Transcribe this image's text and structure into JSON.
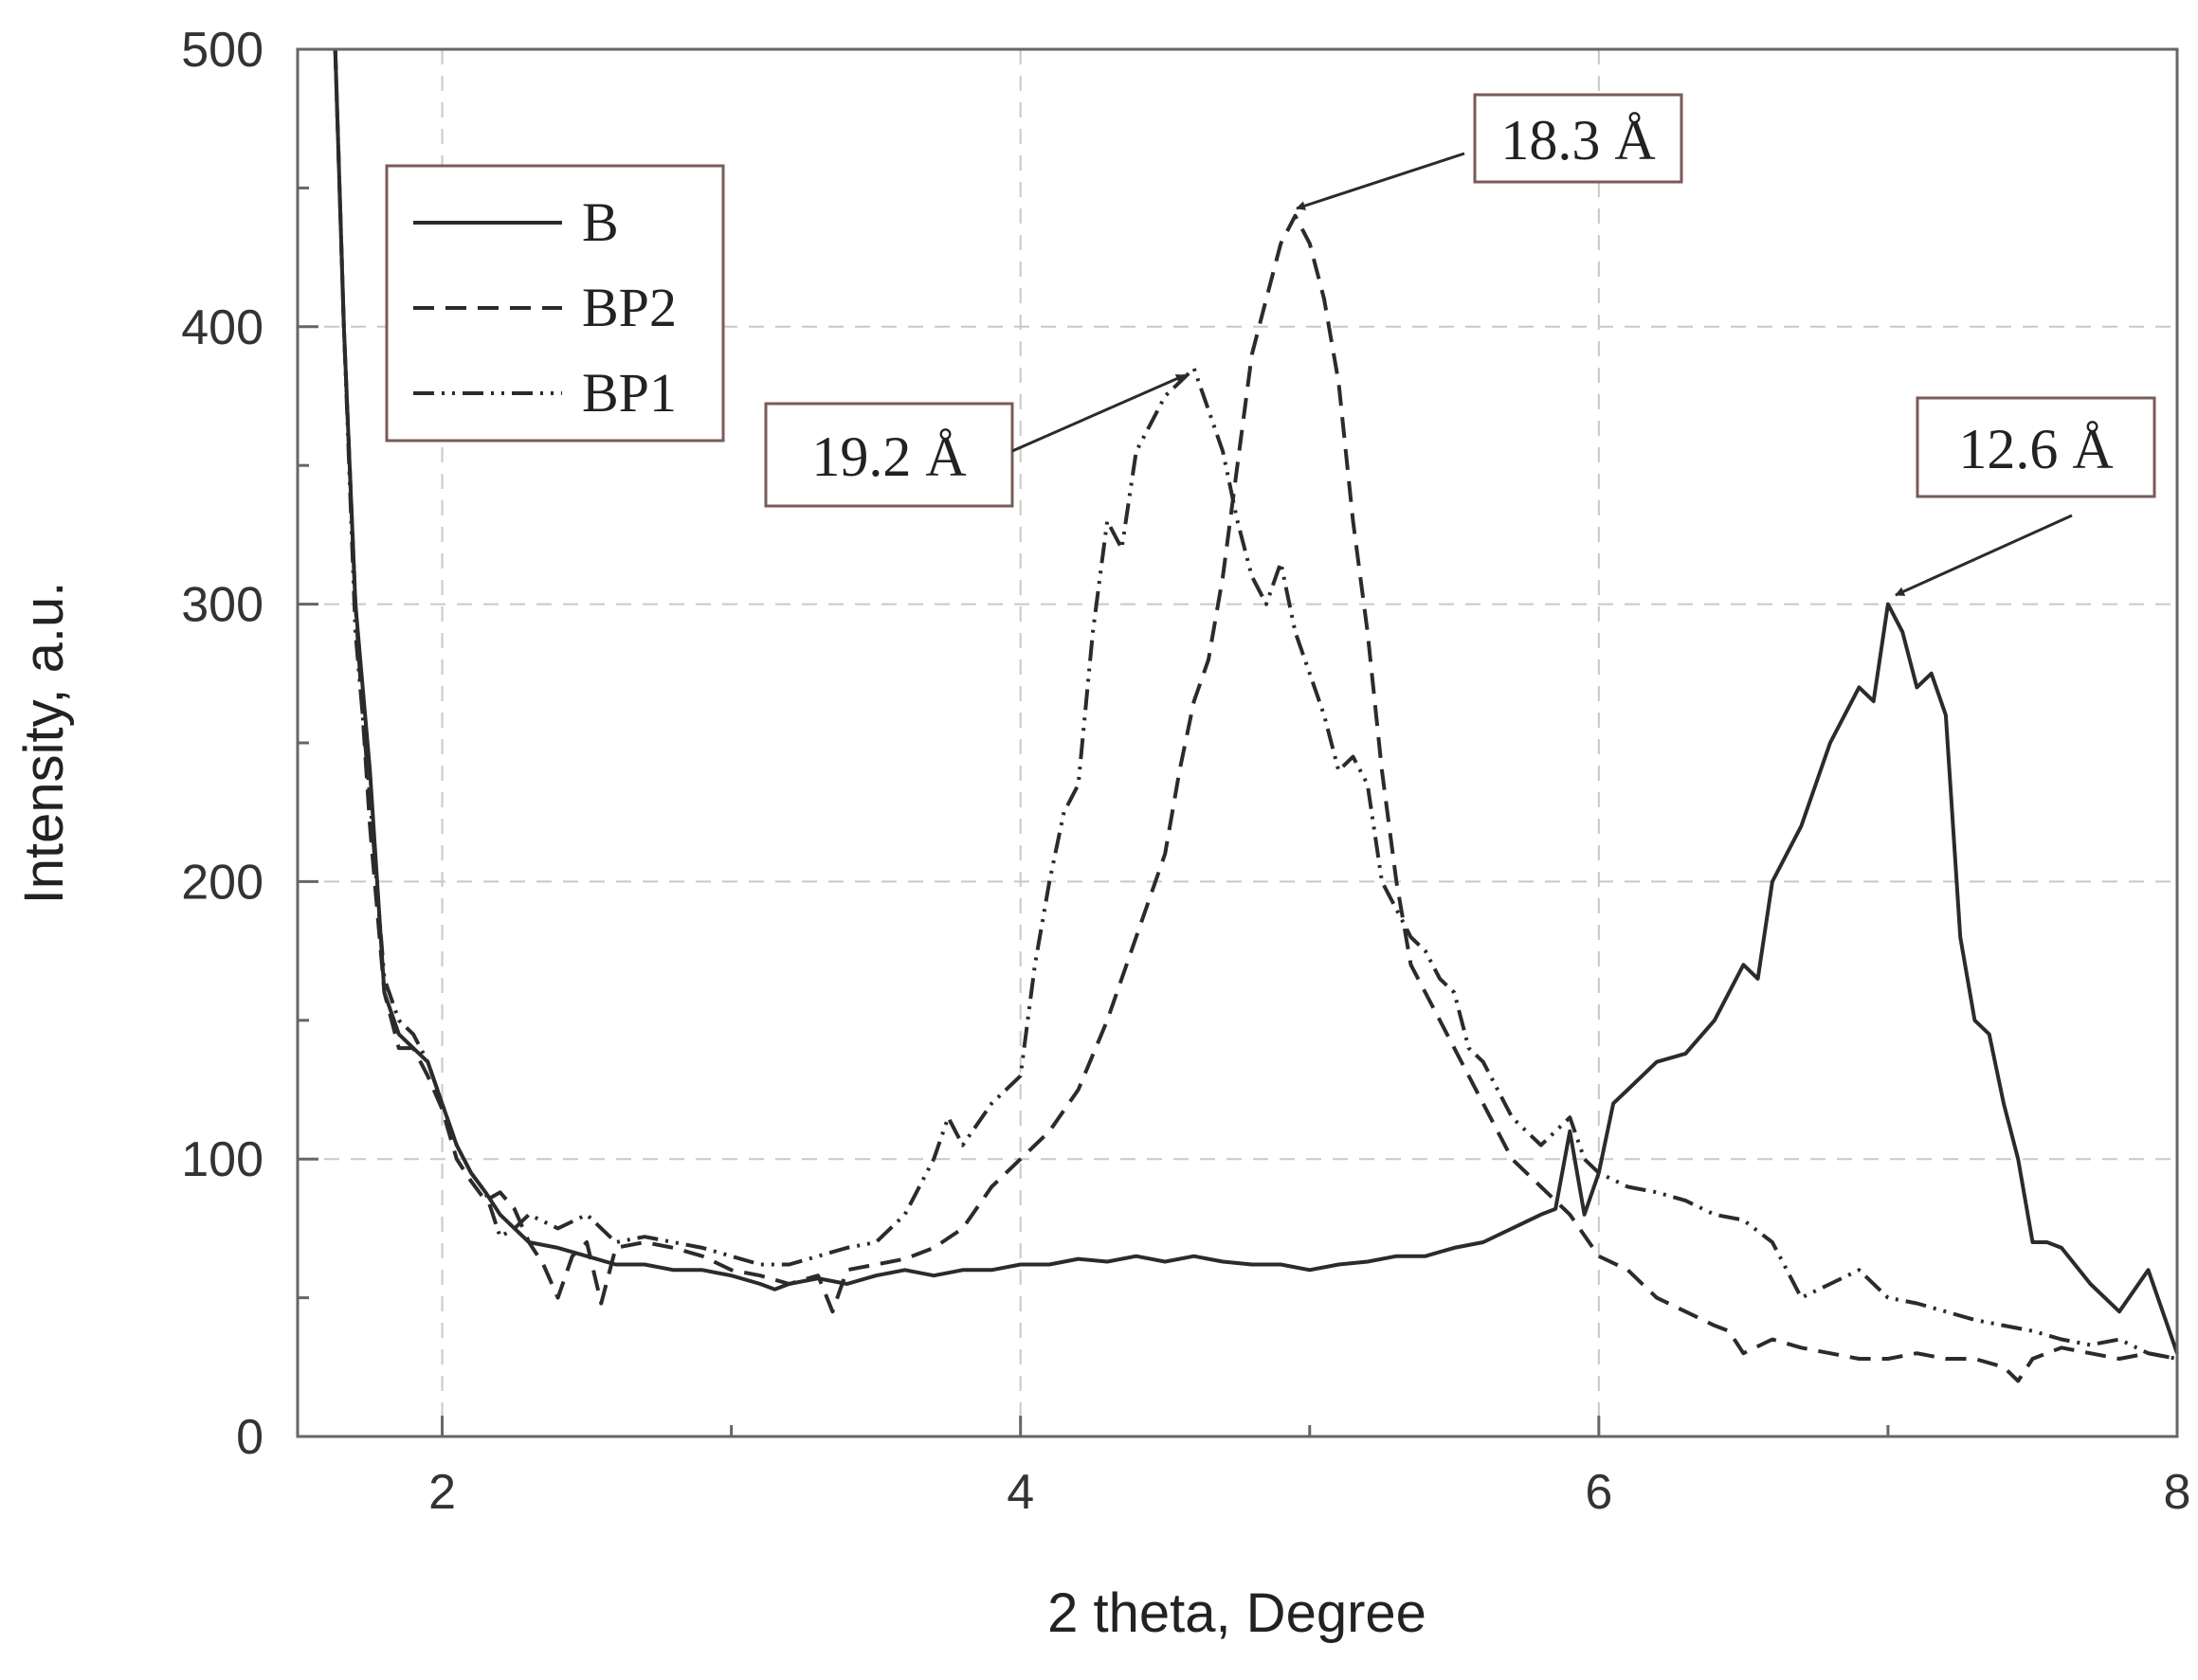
{
  "chart_data": {
    "type": "line",
    "title": "",
    "xlabel": "2 theta, Degree",
    "ylabel": "Intensity, a.u.",
    "xlim": [
      1.5,
      8
    ],
    "ylim": [
      0,
      500
    ],
    "xticks": [
      2,
      4,
      6,
      8
    ],
    "yticks": [
      0,
      100,
      200,
      300,
      400,
      500
    ],
    "x_minor_ticks": [
      3,
      5,
      7
    ],
    "y_minor_ticks": [
      50,
      150,
      250,
      350,
      450
    ],
    "grid": true,
    "legend_position": "top-left",
    "colors": {
      "line": "#2b2b2b",
      "grid": "#c8c8c8",
      "frame": "#666666",
      "box": "#7a5a5a"
    },
    "series": [
      {
        "name": "B",
        "style": "solid",
        "x": [
          1.63,
          1.66,
          1.7,
          1.75,
          1.8,
          1.85,
          1.9,
          1.95,
          2.0,
          2.05,
          2.1,
          2.15,
          2.2,
          2.25,
          2.3,
          2.4,
          2.5,
          2.6,
          2.7,
          2.8,
          2.9,
          3.0,
          3.1,
          3.15,
          3.2,
          3.3,
          3.4,
          3.5,
          3.6,
          3.7,
          3.8,
          3.9,
          4.0,
          4.1,
          4.2,
          4.3,
          4.4,
          4.5,
          4.6,
          4.7,
          4.8,
          4.9,
          5.0,
          5.1,
          5.2,
          5.3,
          5.4,
          5.5,
          5.6,
          5.7,
          5.8,
          5.85,
          5.9,
          5.95,
          6.0,
          6.05,
          6.1,
          6.2,
          6.3,
          6.4,
          6.5,
          6.55,
          6.6,
          6.7,
          6.8,
          6.9,
          6.95,
          7.0,
          7.05,
          7.1,
          7.15,
          7.2,
          7.25,
          7.3,
          7.35,
          7.4,
          7.45,
          7.5,
          7.55,
          7.6,
          7.7,
          7.8,
          7.9,
          8.0
        ],
        "y": [
          500,
          400,
          300,
          240,
          160,
          145,
          140,
          135,
          120,
          105,
          95,
          88,
          80,
          75,
          70,
          68,
          65,
          62,
          62,
          60,
          60,
          58,
          55,
          53,
          55,
          57,
          55,
          58,
          60,
          58,
          60,
          60,
          62,
          62,
          64,
          63,
          65,
          63,
          65,
          63,
          62,
          62,
          60,
          62,
          63,
          65,
          65,
          68,
          70,
          75,
          80,
          82,
          110,
          80,
          95,
          120,
          125,
          135,
          138,
          150,
          170,
          165,
          200,
          220,
          250,
          270,
          265,
          300,
          290,
          270,
          275,
          260,
          180,
          150,
          145,
          120,
          100,
          70,
          70,
          68,
          55,
          45,
          60,
          30
        ]
      },
      {
        "name": "BP2",
        "style": "dashed",
        "x": [
          1.63,
          1.66,
          1.7,
          1.75,
          1.8,
          1.85,
          1.9,
          1.95,
          2.0,
          2.05,
          2.1,
          2.15,
          2.2,
          2.25,
          2.3,
          2.35,
          2.4,
          2.45,
          2.5,
          2.55,
          2.6,
          2.7,
          2.8,
          2.9,
          3.0,
          3.1,
          3.2,
          3.3,
          3.35,
          3.4,
          3.5,
          3.6,
          3.7,
          3.8,
          3.9,
          4.0,
          4.1,
          4.2,
          4.3,
          4.4,
          4.5,
          4.55,
          4.6,
          4.65,
          4.7,
          4.75,
          4.8,
          4.85,
          4.9,
          4.95,
          5.0,
          5.05,
          5.1,
          5.15,
          5.2,
          5.25,
          5.3,
          5.35,
          5.4,
          5.45,
          5.5,
          5.6,
          5.7,
          5.8,
          5.9,
          6.0,
          6.1,
          6.2,
          6.3,
          6.4,
          6.45,
          6.5,
          6.6,
          6.7,
          6.8,
          6.9,
          7.0,
          7.1,
          7.2,
          7.3,
          7.4,
          7.45,
          7.5,
          7.6,
          7.7,
          7.8,
          7.9,
          8.0
        ],
        "y": [
          500,
          400,
          300,
          220,
          160,
          140,
          140,
          130,
          118,
          100,
          92,
          85,
          88,
          82,
          70,
          62,
          50,
          65,
          70,
          48,
          68,
          70,
          68,
          65,
          60,
          58,
          55,
          58,
          45,
          60,
          62,
          64,
          68,
          75,
          90,
          100,
          110,
          125,
          150,
          180,
          210,
          240,
          265,
          280,
          310,
          350,
          390,
          410,
          430,
          440,
          430,
          410,
          380,
          330,
          290,
          240,
          200,
          170,
          160,
          150,
          140,
          120,
          100,
          90,
          80,
          65,
          60,
          50,
          45,
          40,
          38,
          30,
          35,
          32,
          30,
          28,
          28,
          30,
          28,
          28,
          25,
          20,
          28,
          32,
          30,
          28,
          30,
          28
        ]
      },
      {
        "name": "BP1",
        "style": "dash-dot-dot",
        "x": [
          1.63,
          1.66,
          1.7,
          1.75,
          1.8,
          1.85,
          1.9,
          1.95,
          2.0,
          2.05,
          2.1,
          2.15,
          2.2,
          2.25,
          2.3,
          2.4,
          2.5,
          2.6,
          2.7,
          2.8,
          2.9,
          3.0,
          3.1,
          3.2,
          3.3,
          3.4,
          3.5,
          3.6,
          3.7,
          3.75,
          3.8,
          3.9,
          4.0,
          4.05,
          4.1,
          4.15,
          4.2,
          4.25,
          4.3,
          4.35,
          4.4,
          4.45,
          4.5,
          4.55,
          4.6,
          4.65,
          4.7,
          4.75,
          4.8,
          4.85,
          4.9,
          4.95,
          5.0,
          5.05,
          5.1,
          5.15,
          5.2,
          5.25,
          5.3,
          5.35,
          5.4,
          5.45,
          5.5,
          5.55,
          5.6,
          5.7,
          5.8,
          5.85,
          5.9,
          5.95,
          6.0,
          6.1,
          6.2,
          6.3,
          6.4,
          6.5,
          6.6,
          6.7,
          6.8,
          6.9,
          7.0,
          7.1,
          7.2,
          7.3,
          7.4,
          7.5,
          7.6,
          7.7,
          7.8,
          7.9,
          8.0
        ],
        "y": [
          500,
          400,
          290,
          230,
          165,
          150,
          145,
          135,
          120,
          105,
          95,
          88,
          72,
          75,
          80,
          75,
          80,
          70,
          72,
          70,
          68,
          65,
          62,
          62,
          65,
          68,
          70,
          80,
          100,
          115,
          105,
          120,
          130,
          170,
          200,
          225,
          235,
          290,
          330,
          320,
          355,
          365,
          375,
          380,
          385,
          370,
          355,
          330,
          310,
          300,
          315,
          290,
          275,
          260,
          240,
          245,
          235,
          200,
          190,
          180,
          175,
          165,
          160,
          140,
          135,
          115,
          105,
          110,
          115,
          100,
          95,
          90,
          88,
          85,
          80,
          78,
          70,
          50,
          55,
          60,
          50,
          48,
          45,
          42,
          40,
          38,
          35,
          33,
          35,
          30,
          28
        ]
      }
    ],
    "annotations": [
      {
        "label": "18.3 Å",
        "x": 4.97,
        "y": 445
      },
      {
        "label": "19.2 Å",
        "x": 4.6,
        "y": 385
      },
      {
        "label": "12.6 Å",
        "x": 7.0,
        "y": 302
      }
    ]
  }
}
